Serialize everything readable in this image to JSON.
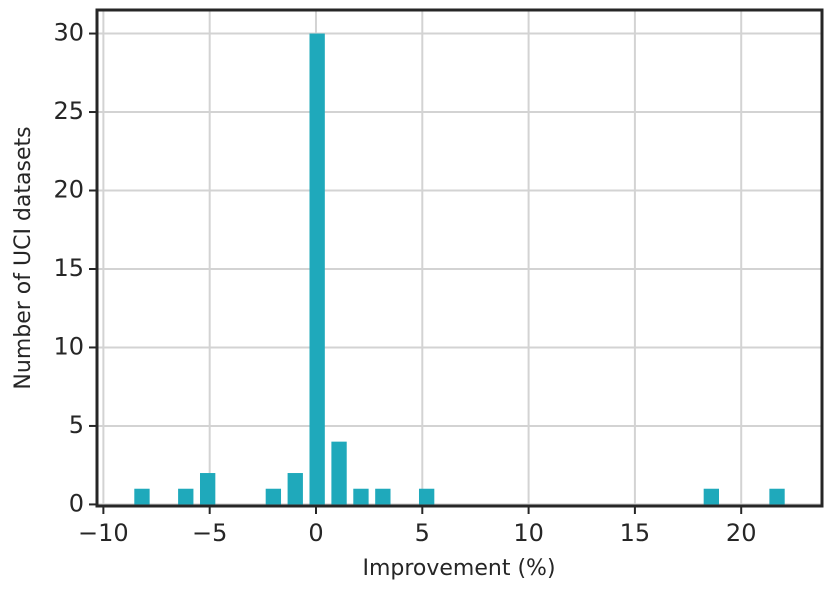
{
  "chart_data": {
    "type": "histogram",
    "x_label": "Improvement (%)",
    "y_label": "Number of UCI datasets",
    "bins": [
      -8.7,
      -7.67,
      -6.64,
      -5.61,
      -4.58,
      -3.55,
      -2.52,
      -1.49,
      -0.46,
      0.57,
      1.6,
      2.63,
      3.66,
      4.69,
      5.72,
      6.75,
      7.78,
      8.81,
      9.84,
      10.87,
      11.9,
      12.93,
      13.96,
      14.99,
      16.02,
      17.05,
      18.08,
      19.11,
      20.14,
      21.17,
      22.2
    ],
    "values": [
      1,
      0,
      1,
      2,
      0,
      0,
      1,
      2,
      30,
      4,
      1,
      1,
      0,
      1,
      0,
      0,
      0,
      0,
      0,
      0,
      0,
      0,
      0,
      0,
      0,
      0,
      1,
      0,
      0,
      1
    ],
    "color": "#1fa9bb",
    "xlim": [
      -10.3,
      23.8
    ],
    "ylim": [
      -0.1,
      31.5
    ],
    "xticks": [
      {
        "value": -10,
        "label": "−10"
      },
      {
        "value": -5,
        "label": "−5"
      },
      0,
      5,
      10,
      15,
      20
    ],
    "yticks": [
      0,
      5,
      10,
      15,
      20,
      25,
      30
    ],
    "grid": true
  }
}
